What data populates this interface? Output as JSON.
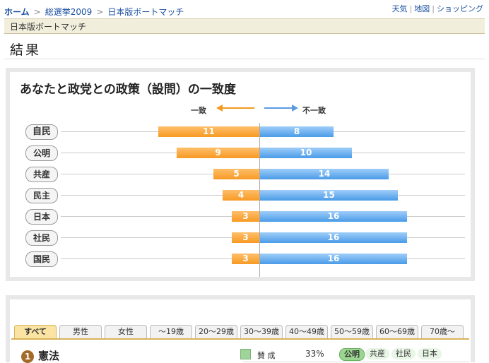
{
  "breadcrumb": {
    "home": "ホーム",
    "level1": "総選挙2009",
    "level2": "日本版ボートマッチ",
    "separator": ">"
  },
  "top_links": [
    "天気",
    "地図",
    "ショッピング"
  ],
  "section_label": "日本版ボートマッチ",
  "page_heading": "結果",
  "match_panel": {
    "title": "あなたと政党との政策（設問）の一致度",
    "legend_agree": "一致",
    "legend_disagree": "不一致",
    "colors": {
      "agree": "#f79a24",
      "disagree": "#4a9be8"
    },
    "rows": [
      {
        "party": "自民",
        "agree": 11,
        "disagree": 8
      },
      {
        "party": "公明",
        "agree": 9,
        "disagree": 10
      },
      {
        "party": "共産",
        "agree": 5,
        "disagree": 14
      },
      {
        "party": "民主",
        "agree": 4,
        "disagree": 15
      },
      {
        "party": "日本",
        "agree": 3,
        "disagree": 16
      },
      {
        "party": "社民",
        "agree": 3,
        "disagree": 16
      },
      {
        "party": "国民",
        "agree": 3,
        "disagree": 16
      }
    ]
  },
  "tabs": [
    "すべて",
    "男性",
    "女性",
    "～19歳",
    "20～29歳",
    "30～39歳",
    "40～49歳",
    "50～59歳",
    "60～69歳",
    "70歳～"
  ],
  "question": {
    "number": "1",
    "title": "憲法",
    "stance_label": "賛 成",
    "stance_pct": "33%",
    "parties": [
      "公明",
      "共産",
      "社民",
      "日本"
    ]
  }
}
